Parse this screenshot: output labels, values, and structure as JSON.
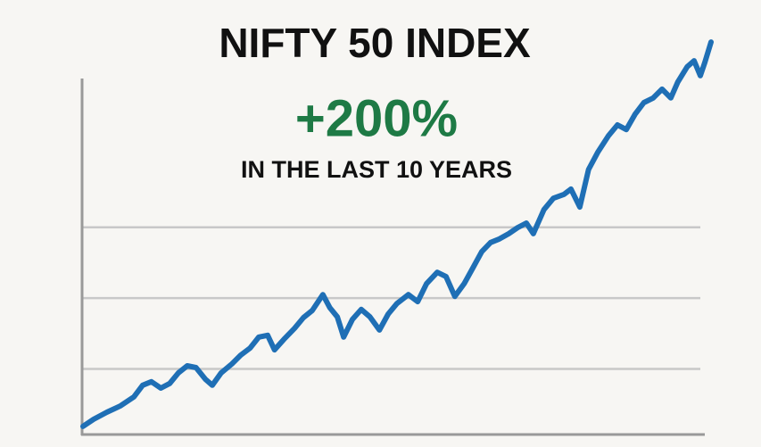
{
  "chart_data": {
    "type": "line",
    "title": "NIFTY 50 INDEX",
    "annotation": "+200%",
    "subtitle": "IN THE LAST 10 YEARS",
    "annotation_color": "#1e7a45",
    "x": [
      0,
      1.7,
      3.8,
      6.0,
      8.1,
      9.5,
      10.9,
      12.4,
      13.8,
      15.2,
      16.6,
      18.0,
      19.5,
      20.6,
      22.0,
      23.7,
      25.1,
      26.6,
      28.0,
      29.4,
      30.5,
      32.0,
      33.7,
      35.1,
      36.5,
      38.2,
      39.3,
      40.5,
      41.5,
      42.9,
      44.3,
      45.7,
      47.2,
      48.6,
      50.0,
      51.8,
      53.3,
      54.7,
      56.4,
      57.8,
      59.2,
      60.7,
      62.1,
      63.5,
      64.9,
      66.3,
      67.8,
      69.2,
      70.6,
      71.7,
      73.4,
      74.9,
      76.6,
      77.7,
      79.1,
      80.5,
      82.0,
      83.7,
      85.1,
      86.5,
      87.9,
      89.3,
      90.8,
      92.2,
      93.6,
      94.7,
      96.2,
      97.3,
      98.3,
      99.0,
      100
    ],
    "series": [
      {
        "color": "#1f6fb5",
        "values": [
          1.8,
          3.8,
          5.8,
          7.6,
          10.1,
          13.4,
          14.4,
          12.6,
          13.9,
          16.9,
          18.9,
          18.4,
          15.1,
          13.4,
          16.9,
          19.4,
          21.9,
          23.9,
          27.0,
          27.5,
          23.4,
          26.4,
          29.5,
          32.5,
          34.5,
          39.0,
          35.3,
          32.7,
          27.0,
          32.0,
          34.8,
          32.7,
          29.0,
          33.5,
          36.5,
          39.0,
          37.0,
          42.1,
          45.3,
          44.1,
          38.5,
          42.1,
          46.6,
          51.1,
          53.7,
          54.7,
          56.2,
          57.9,
          59.2,
          56.2,
          63.0,
          66.2,
          67.3,
          68.8,
          63.7,
          74.3,
          79.3,
          83.9,
          86.9,
          85.6,
          89.9,
          93.2,
          94.5,
          97.0,
          94.5,
          99.0,
          103.3,
          105.0,
          100.8,
          104.5,
          110.3
        ]
      }
    ],
    "xlim": [
      0,
      100
    ],
    "ylim": [
      0,
      100
    ],
    "gridlines": [
      18,
      38,
      58
    ],
    "grid": true
  }
}
